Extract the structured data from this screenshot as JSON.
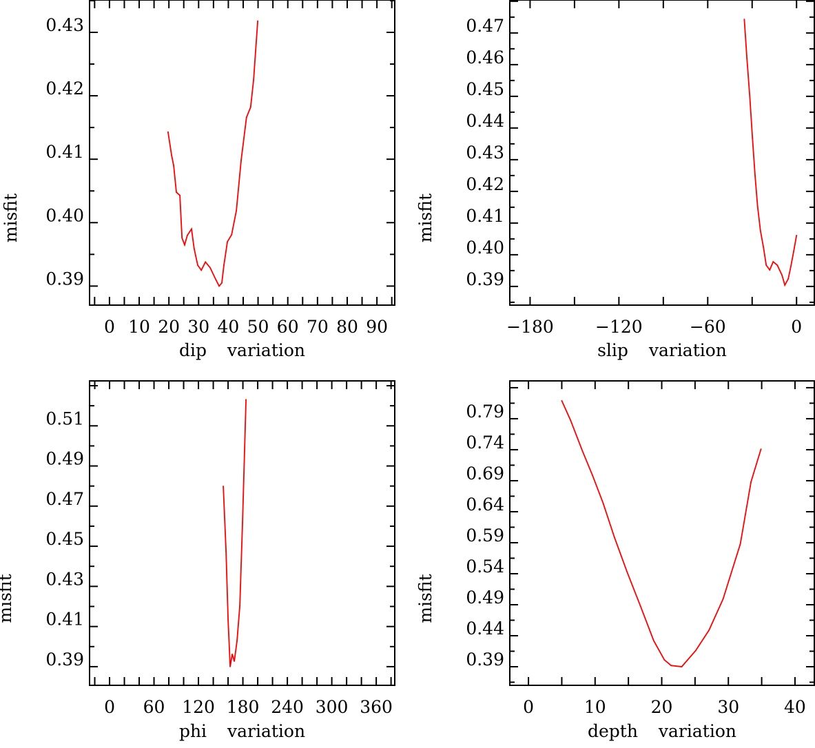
{
  "chart_data": [
    {
      "type": "line",
      "xlabel": "dip variation",
      "ylabel": "misfit",
      "xlim": [
        -6.7,
        96
      ],
      "ylim": [
        0.387,
        0.4351
      ],
      "xticks": [
        0,
        10,
        20,
        30,
        40,
        50,
        60,
        70,
        80,
        90
      ],
      "xtick_labels": [
        "0",
        "10",
        "20",
        "30",
        "40",
        "50",
        "60",
        "70",
        "80",
        "90"
      ],
      "xminor": 5,
      "yticks": [
        0.39,
        0.4,
        0.41,
        0.42,
        0.43
      ],
      "ytick_labels": [
        "0.39",
        "0.40",
        "0.41",
        "0.42",
        "0.43"
      ],
      "yminor": 0.005,
      "color": "#ff0000",
      "x": [
        19.7,
        20.9,
        21.6,
        22.5,
        23.7,
        24.4,
        25.3,
        26.2,
        27.6,
        28.5,
        29.7,
        30.9,
        32.3,
        33.9,
        35.7,
        36.9,
        37.8,
        38.5,
        39.7,
        41.1,
        42.7,
        44.3,
        46.1,
        47.5,
        48.5,
        49.9
      ],
      "y": [
        0.4143,
        0.4106,
        0.409,
        0.4048,
        0.4043,
        0.3976,
        0.3965,
        0.398,
        0.399,
        0.3959,
        0.3933,
        0.3925,
        0.3938,
        0.3929,
        0.3911,
        0.39,
        0.3905,
        0.3933,
        0.397,
        0.3981,
        0.4019,
        0.4098,
        0.4166,
        0.4182,
        0.4225,
        0.4318
      ]
    },
    {
      "type": "line",
      "xlabel": "slip variation",
      "ylabel": "misfit",
      "xlim": [
        -193.7,
        12
      ],
      "ylim": [
        0.3841,
        0.4804
      ],
      "xticks": [
        -180,
        -120,
        -60,
        0
      ],
      "xtick_labels": [
        "−180",
        "−120",
        "−60",
        "0"
      ],
      "xminor": 30,
      "yticks": [
        0.39,
        0.4,
        0.41,
        0.42,
        0.43,
        0.44,
        0.45,
        0.46,
        0.47
      ],
      "ytick_labels": [
        "0.39",
        "0.40",
        "0.41",
        "0.42",
        "0.43",
        "0.44",
        "0.45",
        "0.46",
        "0.47"
      ],
      "yminor": 0.005,
      "color": "#ff0000",
      "x": [
        -35.3,
        -33.5,
        -31.6,
        -29.8,
        -28.0,
        -26.3,
        -24.4,
        -22.3,
        -20.5,
        -18.1,
        -15.8,
        -13.0,
        -9.8,
        -7.9,
        -5.6,
        -3.7,
        -1.9,
        0
      ],
      "y": [
        0.4743,
        0.4619,
        0.45,
        0.4369,
        0.425,
        0.4152,
        0.4076,
        0.4022,
        0.3967,
        0.3952,
        0.3978,
        0.3967,
        0.3935,
        0.3904,
        0.3924,
        0.3967,
        0.4011,
        0.4061
      ]
    },
    {
      "type": "line",
      "xlabel": "phi variation",
      "ylabel": "misfit",
      "xlim": [
        -27,
        385
      ],
      "ylim": [
        0.3807,
        0.5324
      ],
      "xticks": [
        0,
        60,
        120,
        180,
        240,
        300,
        360
      ],
      "xtick_labels": [
        "0",
        "60",
        "120",
        "180",
        "240",
        "300",
        "360"
      ],
      "xminor": 20,
      "yticks": [
        0.39,
        0.41,
        0.43,
        0.45,
        0.47,
        0.49,
        0.51
      ],
      "ytick_labels": [
        "0.39",
        "0.41",
        "0.43",
        "0.45",
        "0.47",
        "0.49",
        "0.51"
      ],
      "yminor": 0.01,
      "color": "#ff0000",
      "x": [
        153.5,
        157.2,
        160,
        162.8,
        165.6,
        168.4,
        172.1,
        175.8,
        179.5,
        184.2
      ],
      "y": [
        0.4799,
        0.4476,
        0.4133,
        0.39,
        0.3962,
        0.3927,
        0.403,
        0.4202,
        0.4614,
        0.5231
      ]
    },
    {
      "type": "line",
      "xlabel": "depth variation",
      "ylabel": "misfit",
      "xlim": [
        -2.8,
        42.9
      ],
      "ylim": [
        0.36,
        0.851
      ],
      "xticks": [
        0,
        10,
        20,
        30,
        40
      ],
      "xtick_labels": [
        "0",
        "10",
        "20",
        "30",
        "40"
      ],
      "xminor": 5,
      "yticks": [
        0.39,
        0.44,
        0.49,
        0.54,
        0.59,
        0.64,
        0.69,
        0.74,
        0.79
      ],
      "ytick_labels": [
        "0.39",
        "0.44",
        "0.49",
        "0.54",
        "0.59",
        "0.64",
        "0.69",
        "0.74",
        "0.79"
      ],
      "yminor": 0.025,
      "color": "#ff0000",
      "x": [
        5.0,
        6.3,
        8.1,
        9.6,
        11.2,
        12.9,
        14.8,
        16.8,
        18.8,
        20.4,
        21.4,
        23.0,
        25.1,
        27.1,
        29.2,
        31.8,
        33.4,
        34.9
      ],
      "y": [
        0.819,
        0.788,
        0.738,
        0.699,
        0.654,
        0.599,
        0.543,
        0.488,
        0.432,
        0.401,
        0.392,
        0.39,
        0.416,
        0.449,
        0.499,
        0.588,
        0.688,
        0.741
      ]
    }
  ]
}
